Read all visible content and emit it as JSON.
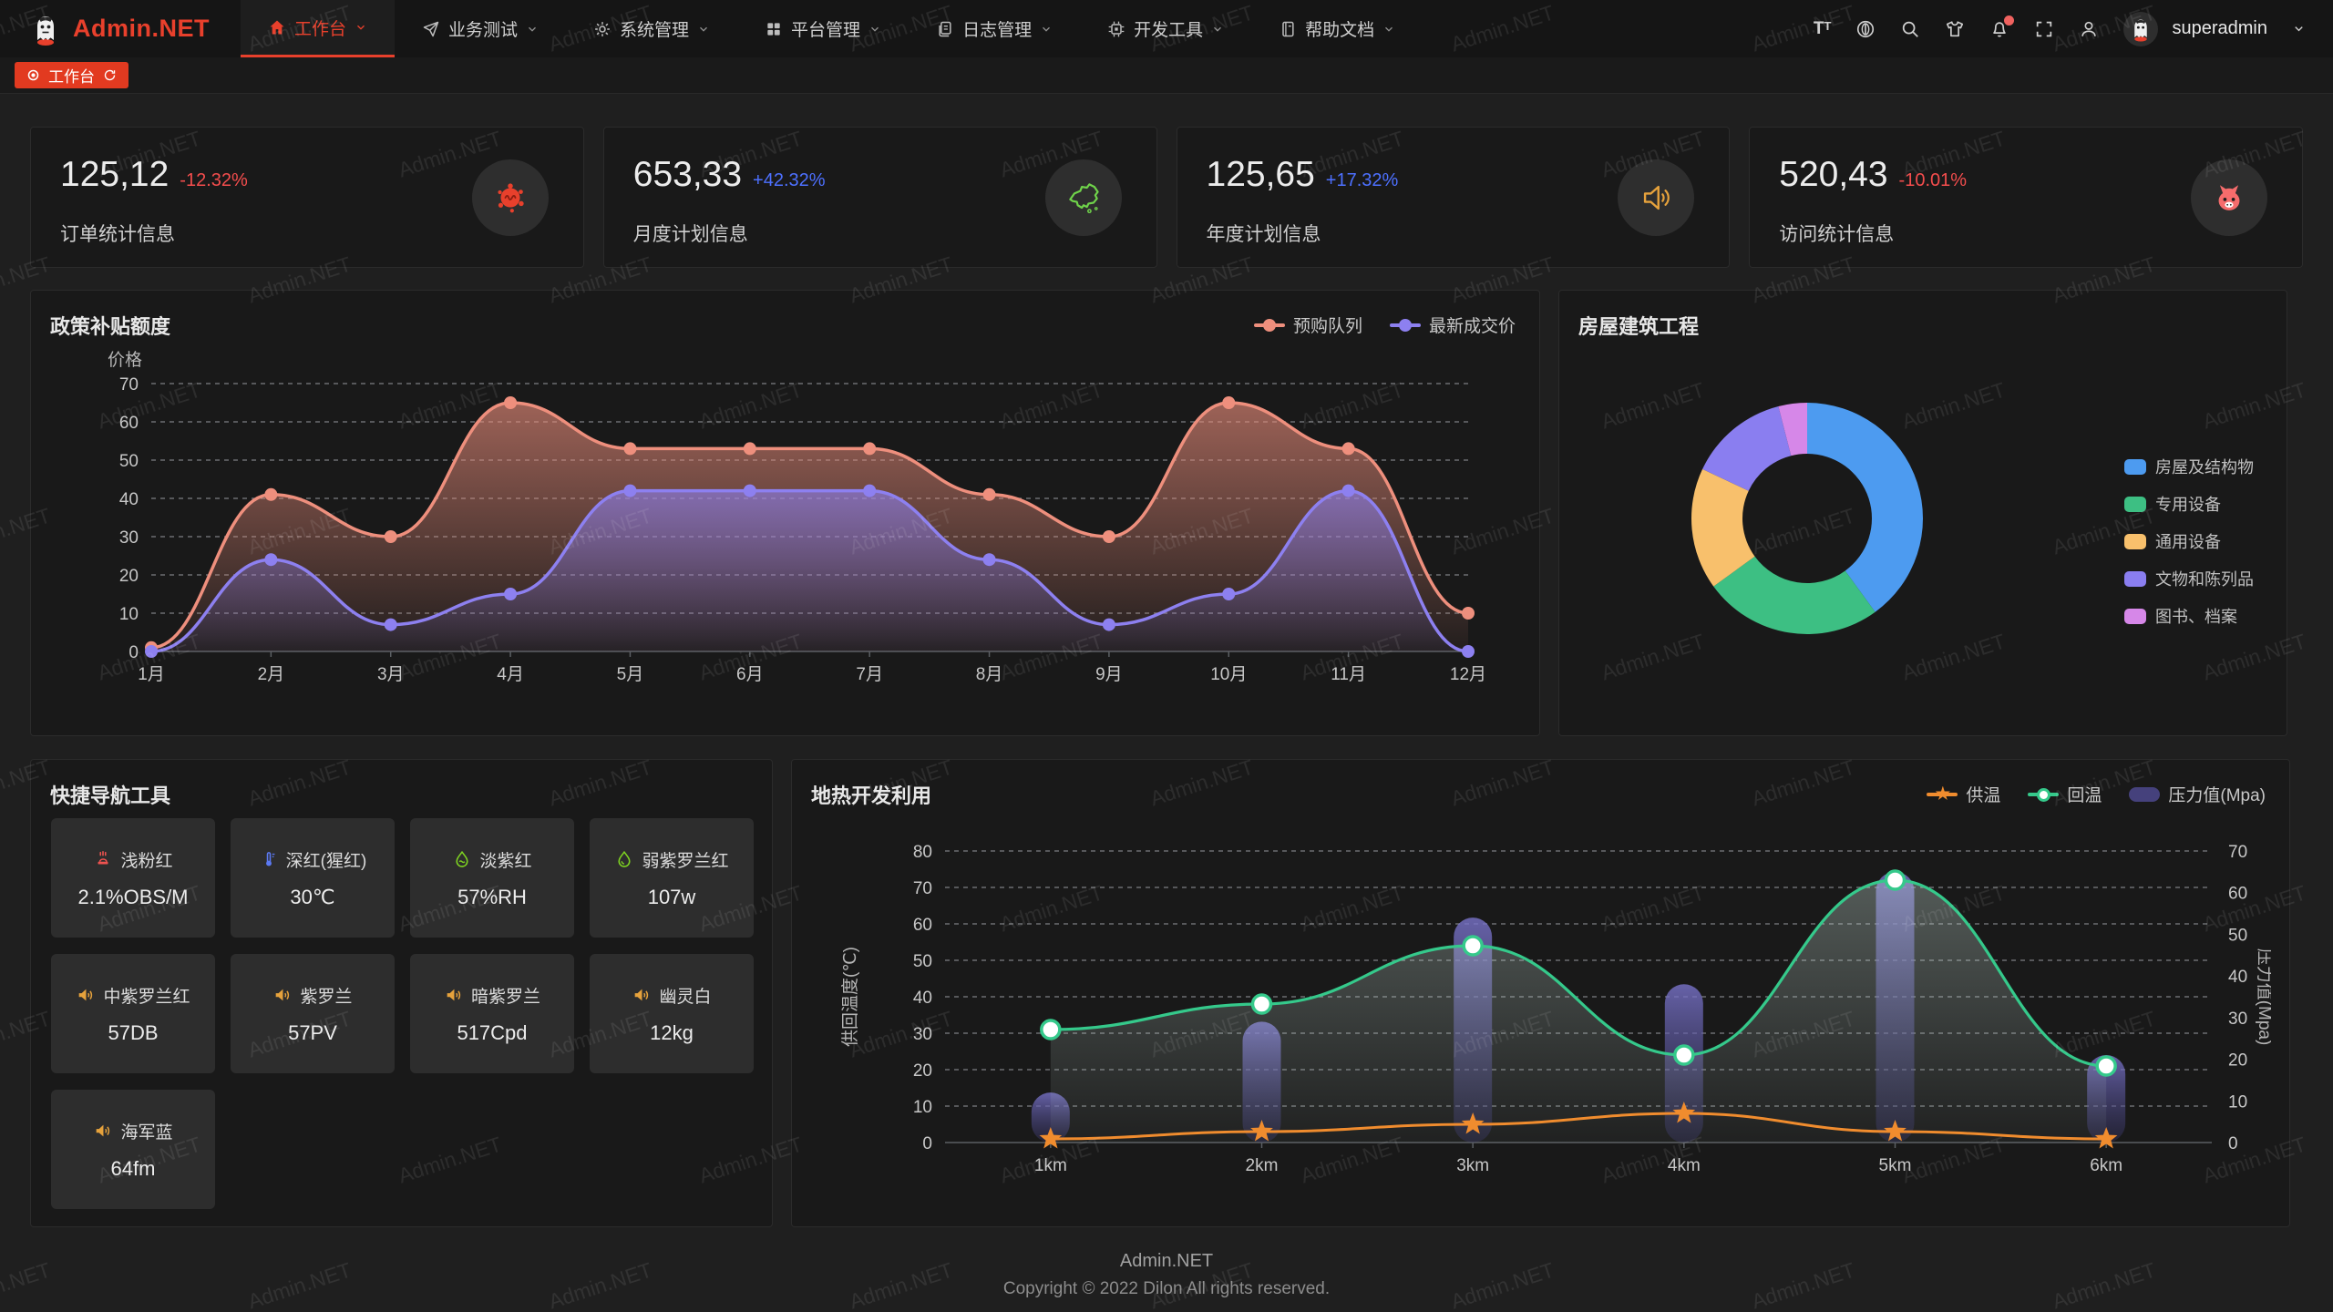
{
  "theme": {
    "accent_red": "#e8402c",
    "up_color": "#4d70ff",
    "down_color": "#f34d4d",
    "page_bg": "#1f1f1f",
    "card_bg": "#191919"
  },
  "watermark": {
    "text": "Admin.NET"
  },
  "navbar": {
    "logo_text": "Admin.NET",
    "menu": [
      {
        "label": "工作台",
        "active": true
      },
      {
        "label": "业务测试"
      },
      {
        "label": "系统管理"
      },
      {
        "label": "平台管理"
      },
      {
        "label": "日志管理"
      },
      {
        "label": "开发工具"
      },
      {
        "label": "帮助文档"
      }
    ],
    "username": "superadmin"
  },
  "tabbar": {
    "tabs": [
      {
        "label": "工作台",
        "active": true
      }
    ]
  },
  "stat_cards": [
    {
      "value": "125,12",
      "delta": "-12.32%",
      "trend": "down",
      "label": "订单统计信息",
      "icon": "splash-icon"
    },
    {
      "value": "653,33",
      "delta": "+42.32%",
      "trend": "up",
      "label": "月度计划信息",
      "icon": "china-map-icon"
    },
    {
      "value": "125,65",
      "delta": "+17.32%",
      "trend": "up",
      "label": "年度计划信息",
      "icon": "speaker-icon"
    },
    {
      "value": "520,43",
      "delta": "-10.01%",
      "trend": "down",
      "label": "访问统计信息",
      "icon": "cat-icon"
    }
  ],
  "quick_nav": {
    "title": "快捷导航工具",
    "items": [
      {
        "name": "浅粉红",
        "value": "2.1%OBS/M",
        "icon": "heat-icon",
        "icon_color": "#ef5350"
      },
      {
        "name": "深红(猩红)",
        "value": "30℃",
        "icon": "thermometer-icon",
        "icon_color": "#5b79f2"
      },
      {
        "name": "淡紫红",
        "value": "57%RH",
        "icon": "humidity-icon",
        "icon_color": "#7ed321"
      },
      {
        "name": "弱紫罗兰红",
        "value": "107w",
        "icon": "water-drop-icon",
        "icon_color": "#7ed321"
      },
      {
        "name": "中紫罗兰红",
        "value": "57DB",
        "icon": "speaker-icon",
        "icon_color": "#e6a23c"
      },
      {
        "name": "紫罗兰",
        "value": "57PV",
        "icon": "speaker-icon",
        "icon_color": "#e6a23c"
      },
      {
        "name": "暗紫罗兰",
        "value": "517Cpd",
        "icon": "speaker-icon",
        "icon_color": "#e6a23c"
      },
      {
        "name": "幽灵白",
        "value": "12kg",
        "icon": "speaker-icon",
        "icon_color": "#e6a23c"
      },
      {
        "name": "海军蓝",
        "value": "64fm",
        "icon": "speaker-icon",
        "icon_color": "#e6a23c"
      }
    ]
  },
  "footer": {
    "title": "Admin.NET",
    "copyright": "Copyright © 2022 Dilon All rights reserved."
  },
  "chart_data": [
    {
      "type": "line",
      "title": "政策补贴额度",
      "ylabel": "价格",
      "categories": [
        "1月",
        "2月",
        "3月",
        "4月",
        "5月",
        "6月",
        "7月",
        "8月",
        "9月",
        "10月",
        "11月",
        "12月"
      ],
      "ylim": [
        0,
        70
      ],
      "grid": "dashed-horizontal",
      "legend_position": "top-right",
      "series": [
        {
          "name": "预购队列",
          "color": "#ee8f7d",
          "values": [
            1,
            41,
            30,
            65,
            53,
            53,
            53,
            41,
            30,
            65,
            53,
            10
          ]
        },
        {
          "name": "最新成交价",
          "color": "#8d80f0",
          "values": [
            0,
            24,
            7,
            15,
            42,
            42,
            42,
            24,
            7,
            15,
            42,
            0
          ]
        }
      ]
    },
    {
      "type": "pie",
      "title": "房屋建筑工程",
      "donut": true,
      "legend_position": "right",
      "slices": [
        {
          "label": "房屋及结构物",
          "color": "#4d9bf0",
          "percent": 40
        },
        {
          "label": "专用设备",
          "color": "#3dbf83",
          "percent": 25
        },
        {
          "label": "通用设备",
          "color": "#f8c06c",
          "percent": 17
        },
        {
          "label": "文物和陈列品",
          "color": "#8a7ef0",
          "percent": 14
        },
        {
          "label": "图书、档案",
          "color": "#d687e8",
          "percent": 4
        }
      ]
    },
    {
      "type": "mixed",
      "title": "地热开发利用",
      "categories": [
        "1km",
        "2km",
        "3km",
        "4km",
        "5km",
        "6km"
      ],
      "ylabel_left": "供回温度(℃)",
      "ylabel_right": "压力值(Mpa)",
      "ylim_left": [
        0,
        80
      ],
      "ylim_right": [
        0,
        70
      ],
      "legend_position": "top-right",
      "series": [
        {
          "name": "供温",
          "chart": "line",
          "marker": "star",
          "axis": "left",
          "color": "#f08c2e",
          "values": [
            1,
            3,
            5,
            8,
            3,
            1
          ]
        },
        {
          "name": "回温",
          "chart": "line",
          "marker": "circle",
          "axis": "left",
          "color": "#35c98b",
          "values": [
            31,
            38,
            54,
            24,
            72,
            21
          ]
        },
        {
          "name": "压力值(Mpa)",
          "chart": "bar",
          "axis": "right",
          "color": "#4a4687",
          "values": [
            12,
            29,
            54,
            38,
            65,
            21
          ]
        }
      ]
    }
  ]
}
